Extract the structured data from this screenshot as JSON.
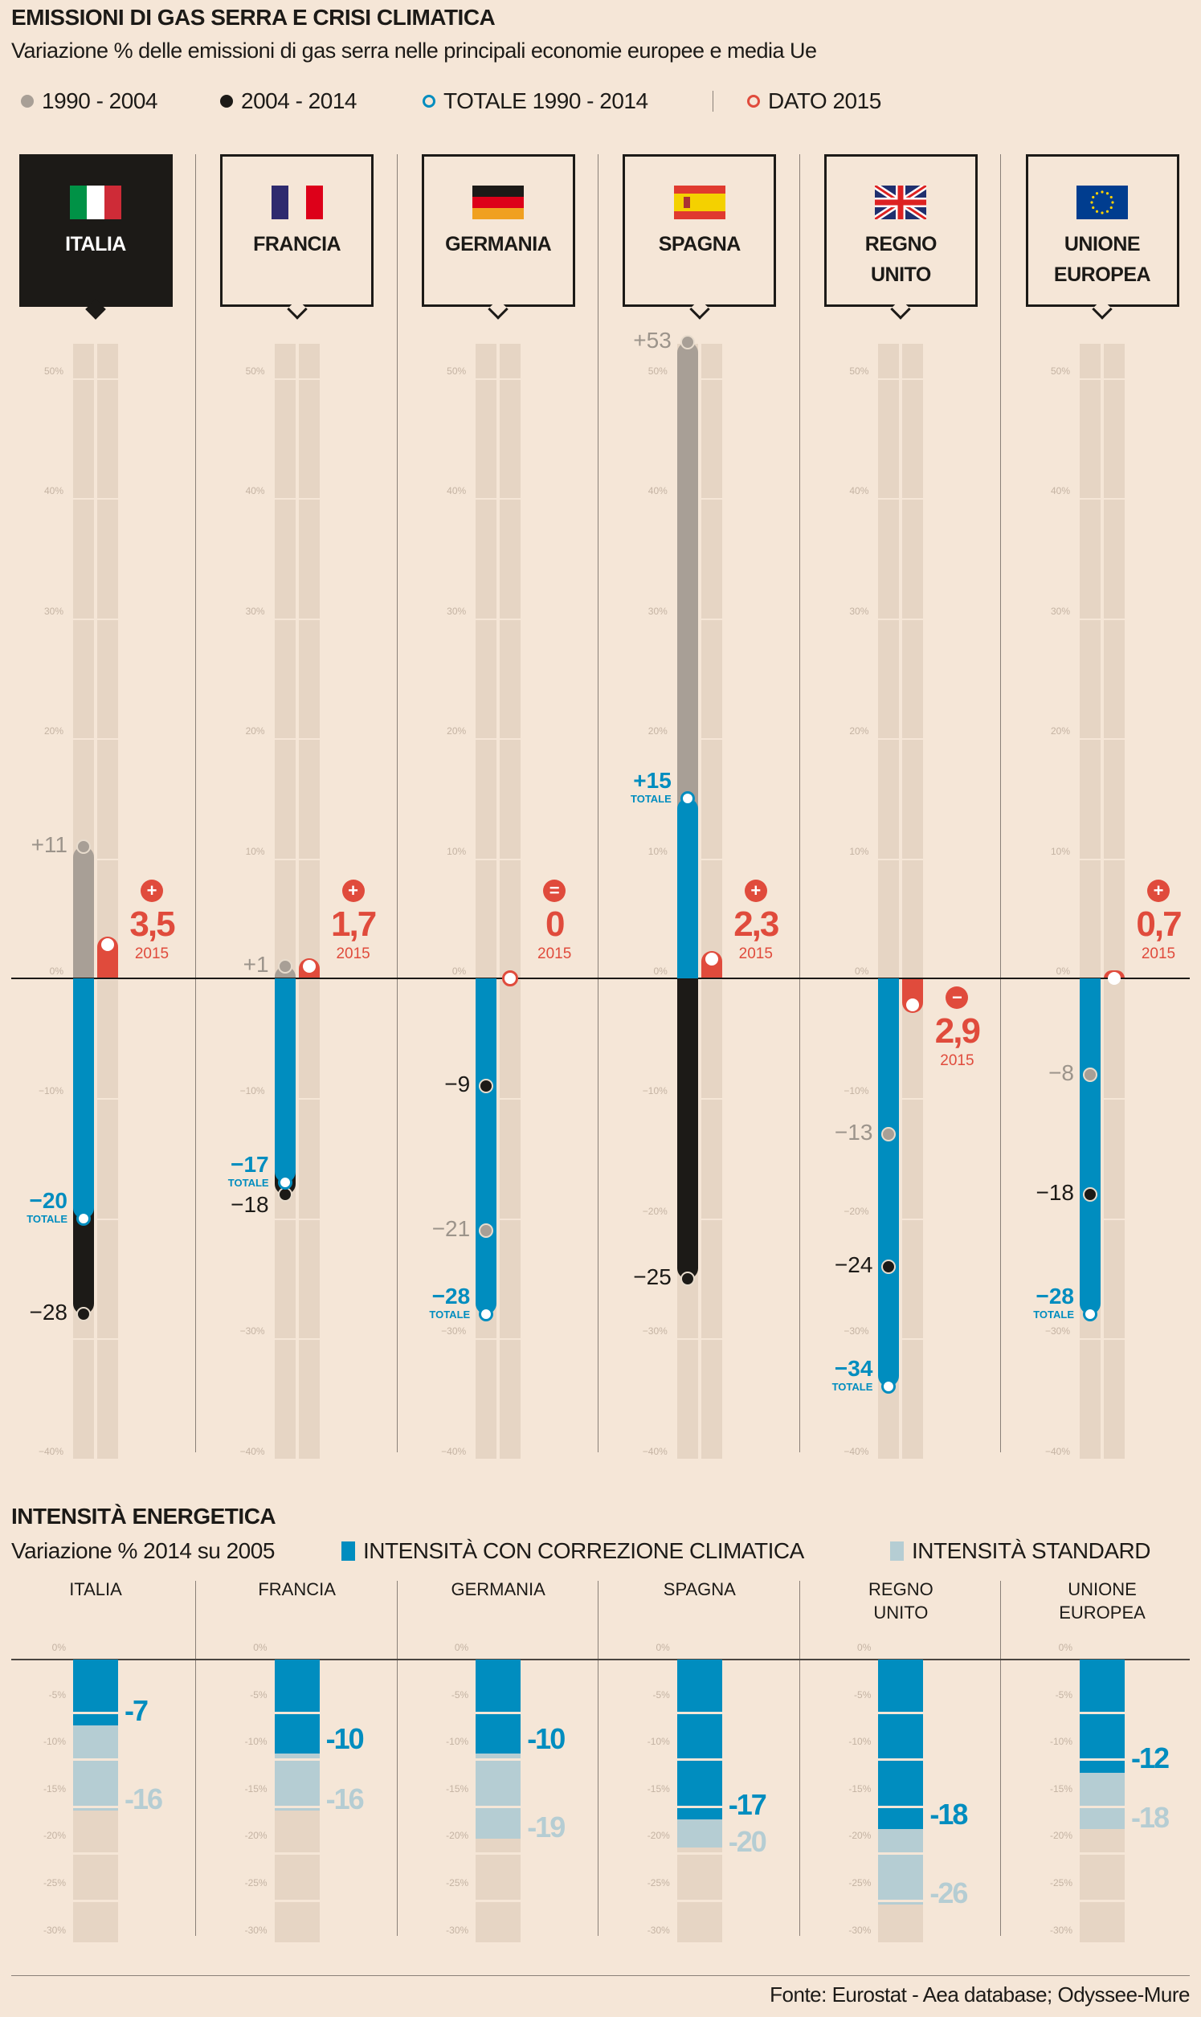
{
  "title": "EMISSIONI DI GAS SERRA E CRISI CLIMATICA",
  "subtitle": "Variazione % delle emissioni di gas serra nelle principali economie europee e media Ue",
  "legend": [
    {
      "label": "1990 - 2004",
      "color": "#a89f96",
      "style": "filled"
    },
    {
      "label": "2004 - 2014",
      "color": "#1c1a17",
      "style": "filled"
    },
    {
      "label": "TOTALE 1990 - 2014",
      "color": "#008dbf",
      "style": "ring"
    },
    {
      "label": "DATO 2015",
      "color": "#e04b3c",
      "style": "ring"
    }
  ],
  "colors": {
    "gray": "#a89f96",
    "black": "#1c1a17",
    "blue": "#008dbf",
    "red": "#e04b3c",
    "light": "#b5cdd3",
    "track": "#e6d5c4"
  },
  "chart_data": [
    {
      "type": "bar",
      "title": "EMISSIONI DI GAS SERRA E CRISI CLIMATICA",
      "ylabel": "Variazione %",
      "ylim": [
        -40,
        53
      ],
      "yticks": [
        "50%",
        "40%",
        "30%",
        "20%",
        "10%",
        "0%",
        "−10%",
        "−20%",
        "−30%",
        "−40%"
      ],
      "ytick_values": [
        50,
        40,
        30,
        20,
        10,
        0,
        -10,
        -20,
        -30,
        -40
      ],
      "totale_label": "TOTALE",
      "year_label": "2015",
      "countries": [
        {
          "name": "ITALIA",
          "lines": [
            "ITALIA"
          ],
          "flag": "it-flag",
          "selected": true,
          "p1990_2004": 11,
          "p2004_2014": -28,
          "totale": -20,
          "d2015": 3.5,
          "labels": {
            "p1990_2004": "+11",
            "p2004_2014": "−28",
            "totale": "−20",
            "d2015": "3,5",
            "sign": "+"
          }
        },
        {
          "name": "FRANCIA",
          "lines": [
            "FRANCIA"
          ],
          "flag": "fr-flag",
          "selected": false,
          "p1990_2004": 1,
          "p2004_2014": -18,
          "totale": -17,
          "d2015": 1.7,
          "labels": {
            "p1990_2004": "+1",
            "p2004_2014": "−18",
            "totale": "−17",
            "d2015": "1,7",
            "sign": "+"
          }
        },
        {
          "name": "GERMANIA",
          "lines": [
            "GERMANIA"
          ],
          "flag": "de-flag",
          "selected": false,
          "p1990_2004": -21,
          "p2004_2014": -9,
          "totale": -28,
          "d2015": 0,
          "labels": {
            "p1990_2004": "−21",
            "p2004_2014": "−9",
            "totale": "−28",
            "d2015": "0",
            "sign": "="
          }
        },
        {
          "name": "SPAGNA",
          "lines": [
            "SPAGNA"
          ],
          "flag": "es-flag",
          "selected": false,
          "p1990_2004": 53,
          "p2004_2014": -25,
          "totale": 15,
          "d2015": 2.3,
          "labels": {
            "p1990_2004": "+53",
            "p2004_2014": "−25",
            "totale": "+15",
            "d2015": "2,3",
            "sign": "+"
          }
        },
        {
          "name": "REGNO UNITO",
          "lines": [
            "REGNO",
            "UNITO"
          ],
          "flag": "uk-flag",
          "selected": false,
          "p1990_2004": -13,
          "p2004_2014": -24,
          "totale": -34,
          "d2015": -2.9,
          "labels": {
            "p1990_2004": "−13",
            "p2004_2014": "−24",
            "totale": "−34",
            "d2015": "2,9",
            "sign": "−"
          }
        },
        {
          "name": "UNIONE EUROPEA",
          "lines": [
            "UNIONE",
            "EUROPEA"
          ],
          "flag": "eu-flag",
          "selected": false,
          "p1990_2004": -8,
          "p2004_2014": -18,
          "totale": -28,
          "d2015": 0.7,
          "labels": {
            "p1990_2004": "−8",
            "p2004_2014": "−18",
            "totale": "−28",
            "d2015": "0,7",
            "sign": "+"
          }
        }
      ]
    },
    {
      "type": "bar",
      "title": "INTENSITÀ ENERGETICA",
      "subtitle": "Variazione % 2014 su 2005",
      "legend": [
        "INTENSITÀ CON CORREZIONE CLIMATICA",
        "INTENSITÀ STANDARD"
      ],
      "ylim": [
        -30,
        0
      ],
      "yticks": [
        "0%",
        "-5%",
        "-10%",
        "-15%",
        "-20%",
        "-25%",
        "-30%"
      ],
      "ytick_values": [
        0,
        -5,
        -10,
        -15,
        -20,
        -25,
        -30
      ],
      "categories": [
        [
          "ITALIA"
        ],
        [
          "FRANCIA"
        ],
        [
          "GERMANIA"
        ],
        [
          "SPAGNA"
        ],
        [
          "REGNO",
          "UNITO"
        ],
        [
          "UNIONE",
          "EUROPEA"
        ]
      ],
      "series": [
        {
          "name": "INTENSITÀ CON CORREZIONE CLIMATICA",
          "values": [
            -7,
            -10,
            -10,
            -17,
            -18,
            -12
          ],
          "labels": [
            "-7",
            "-10",
            "-10",
            "-17",
            "-18",
            "-12"
          ]
        },
        {
          "name": "INTENSITÀ STANDARD",
          "values": [
            -16,
            -16,
            -19,
            -20,
            -26,
            -18
          ],
          "labels": [
            "-16",
            "-16",
            "-19",
            "-20",
            "-26",
            "-18"
          ]
        }
      ]
    }
  ],
  "source": "Fonte: Eurostat - Aea database; Odyssee-Mure"
}
